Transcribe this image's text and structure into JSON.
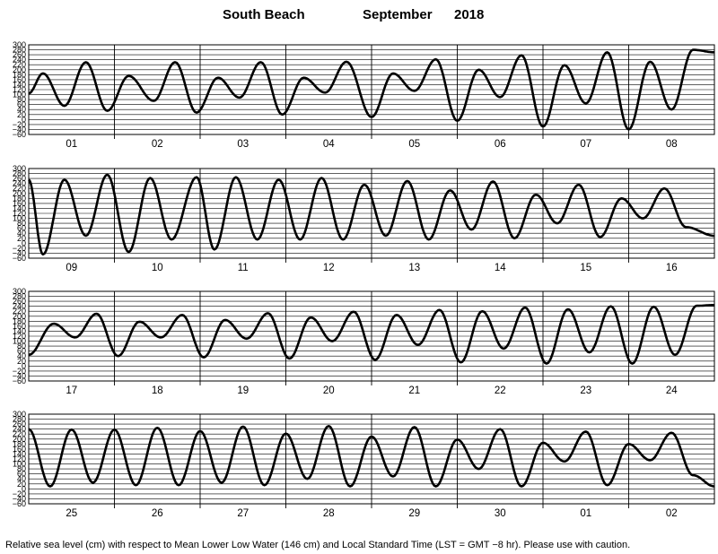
{
  "chart_data": {
    "type": "line",
    "title": {
      "station": "South Beach",
      "month": "September",
      "year": "2018"
    },
    "footnote": "Relative sea level (cm) with respect to Mean Lower Low Water (146 cm) and Local Standard Time (LST = GMT −8 hr). Please use with caution.",
    "y_ticks": [
      "300",
      "280",
      "260",
      "240",
      "220",
      "200",
      "180",
      "160",
      "140",
      "120",
      "100",
      "80",
      "60",
      "40",
      "20",
      "0",
      "−20",
      "−40",
      "−60"
    ],
    "ylim": [
      -60,
      300
    ],
    "xunit": "hours from start of panel (8 days = 192 h)",
    "panels": [
      {
        "days": [
          "01",
          "02",
          "03",
          "04",
          "05",
          "06",
          "07",
          "08"
        ],
        "series": [
          {
            "x": [
              0,
              4,
              10,
              16,
              22,
              28,
              35,
              41,
              47,
              53,
              59,
              65,
              71,
              77,
              83,
              89,
              96,
              102,
              108,
              114,
              120,
              126,
              132,
              138,
              144,
              150,
              156,
              162,
              168,
              174,
              180,
              186,
              192
            ],
            "values": [
              105,
              185,
              55,
              230,
              35,
              175,
              75,
              230,
              28,
              168,
              88,
              230,
              20,
              168,
              108,
              232,
              10,
              185,
              115,
              242,
              -5,
              200,
              90,
              258,
              -28,
              218,
              65,
              270,
              -40,
              232,
              40,
              280,
              270
            ]
          }
        ]
      },
      {
        "days": [
          "09",
          "10",
          "11",
          "12",
          "13",
          "14",
          "15",
          "16"
        ],
        "series": [
          {
            "x": [
              0,
              4,
              10,
              16,
              22,
              28,
              34,
              40,
              47,
              52,
              58,
              64,
              70,
              76,
              82,
              88,
              94,
              100,
              106,
              112,
              118,
              124,
              130,
              136,
              142,
              148,
              154,
              160,
              166,
              172,
              178,
              184,
              192
            ],
            "values": [
              255,
              -45,
              255,
              30,
              275,
              -35,
              262,
              15,
              265,
              -25,
              265,
              15,
              255,
              15,
              262,
              15,
              235,
              30,
              250,
              15,
              212,
              55,
              248,
              20,
              195,
              80,
              235,
              25,
              180,
              100,
              220,
              65,
              30
            ]
          }
        ]
      },
      {
        "days": [
          "17",
          "18",
          "19",
          "20",
          "21",
          "22",
          "23",
          "24"
        ],
        "series": [
          {
            "x": [
              0,
              7,
              13,
              19,
              25,
              31,
              37,
              43,
              49,
              55,
              61,
              67,
              73,
              79,
              85,
              91,
              97,
              103,
              109,
              115,
              121,
              127,
              133,
              139,
              145,
              151,
              157,
              163,
              169,
              175,
              181,
              187,
              192
            ],
            "values": [
              45,
              170,
              115,
              210,
              40,
              178,
              115,
              205,
              35,
              185,
              110,
              212,
              30,
              195,
              100,
              218,
              25,
              205,
              85,
              225,
              15,
              220,
              70,
              235,
              10,
              228,
              55,
              240,
              10,
              238,
              45,
              242,
              245
            ]
          }
        ]
      },
      {
        "days": [
          "25",
          "26",
          "27",
          "28",
          "29",
          "30",
          "01",
          "02"
        ],
        "series": [
          {
            "x": [
              0,
              6,
              12,
              18,
              24,
              30,
              36,
              42,
              48,
              54,
              60,
              66,
              72,
              78,
              84,
              90,
              96,
              102,
              108,
              114,
              120,
              126,
              132,
              138,
              144,
              150,
              156,
              162,
              168,
              174,
              180,
              186,
              192
            ],
            "values": [
              240,
              10,
              238,
              25,
              238,
              15,
              245,
              15,
              232,
              25,
              250,
              15,
              222,
              40,
              252,
              10,
              210,
              50,
              248,
              10,
              198,
              80,
              240,
              10,
              185,
              110,
              230,
              15,
              180,
              115,
              225,
              55,
              10
            ]
          }
        ]
      }
    ]
  }
}
